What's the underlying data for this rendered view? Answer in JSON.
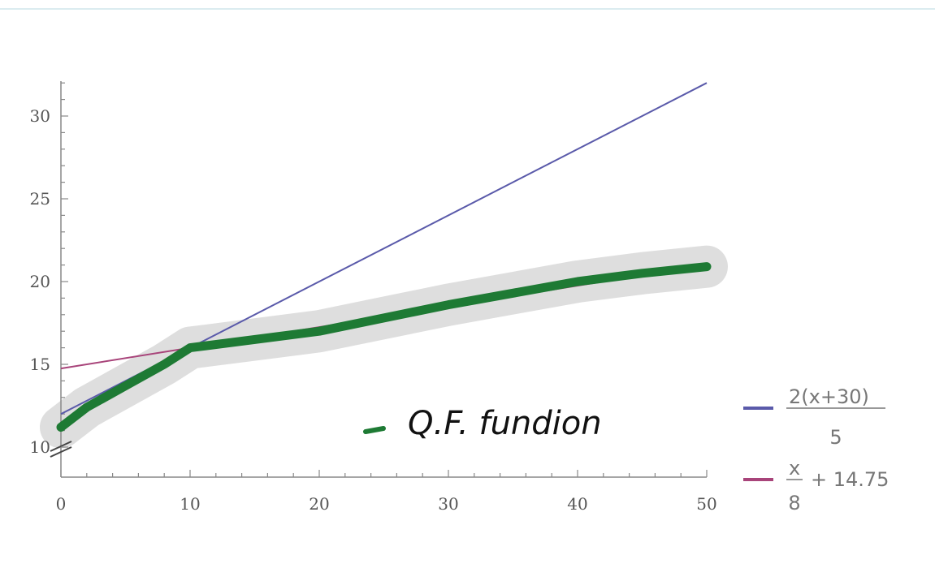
{
  "chart_data": {
    "type": "line",
    "x": [
      0,
      50
    ],
    "xlim": [
      0,
      50
    ],
    "ylim": [
      10,
      32
    ],
    "x_ticks": [
      "0",
      "10",
      "20",
      "30",
      "40",
      "50"
    ],
    "y_ticks": [
      "10",
      "15",
      "20",
      "25",
      "30"
    ],
    "grid": false,
    "legend_position": "right",
    "series": [
      {
        "name": "2(x+30)/5",
        "numerator": "2(x+30)",
        "denominator": "5",
        "values": [
          12,
          32
        ],
        "color": "#5a5aaa"
      },
      {
        "name": "x/8 + 14.75",
        "numerator": "x",
        "denominator": "8",
        "suffix": "+ 14.75",
        "values": [
          14.75,
          21
        ],
        "color": "#a8447a"
      }
    ],
    "annotation": {
      "text": "Q.F. fundion",
      "color": "#1e7a34",
      "x": [
        0,
        2,
        5,
        8,
        10,
        15,
        20,
        25,
        30,
        35,
        40,
        45,
        50
      ],
      "y": [
        11.2,
        12.4,
        13.7,
        15,
        16,
        16.5,
        17,
        17.8,
        18.6,
        19.3,
        20,
        20.5,
        20.9
      ]
    }
  }
}
